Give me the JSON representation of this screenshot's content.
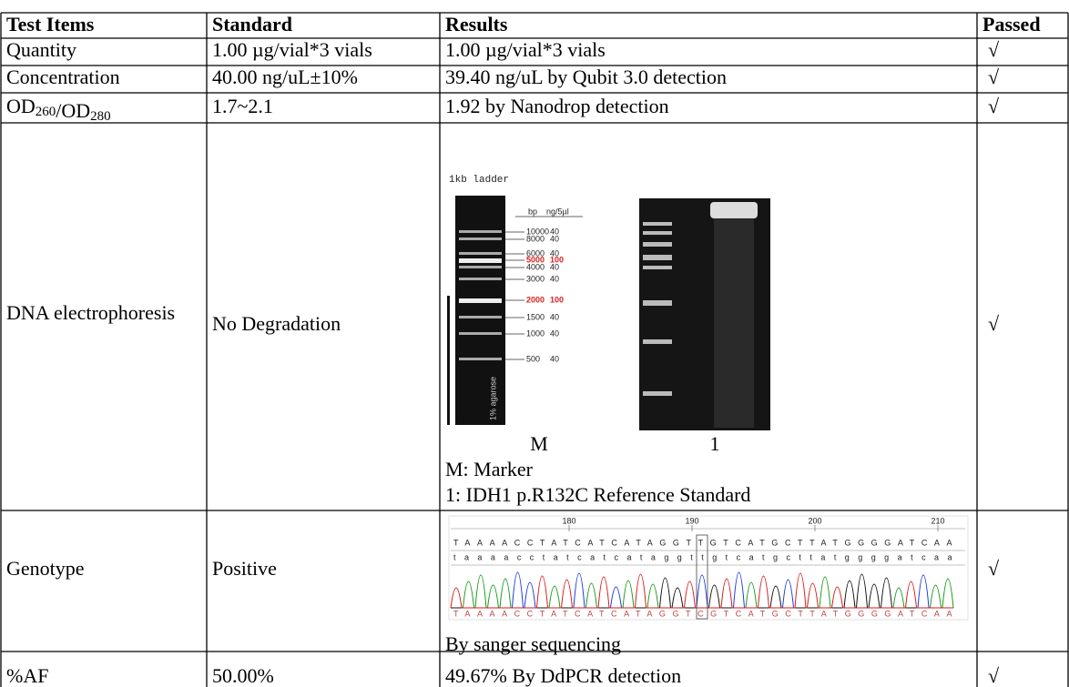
{
  "table": {
    "header": [
      "Test Items",
      "Standard",
      "Results",
      "Passed"
    ],
    "rows": [
      [
        "Quantity",
        "1.00 µg/vial*3 vials",
        "1.00 µg/vial*3 vials",
        "√"
      ],
      [
        "Concentration",
        "40.00 ng/uL±10%",
        "39.40 ng/uL by Qubit 3.0 detection",
        "√"
      ],
      [
        {
          "a": "OD",
          "sub1": "260",
          "b": "/OD",
          "sub2": "280"
        },
        "1.7~2.1",
        "1.92 by Nanodrop detection",
        "√"
      ],
      [
        "DNA electrophoresis",
        "No Degradation",
        {
          "ladder_title": "1kb ladder",
          "ladder_headers": [
            "bp",
            "ng/5µl"
          ],
          "ladder": [
            [
              "10000",
              "40"
            ],
            [
              "8000",
              "40"
            ],
            [
              "6000",
              "40"
            ],
            [
              "5000",
              "100"
            ],
            [
              "4000",
              "40"
            ],
            [
              "3000",
              "40"
            ],
            [
              "2000",
              "100"
            ],
            [
              "1500",
              "40"
            ],
            [
              "1000",
              "40"
            ],
            [
              "500",
              "40"
            ]
          ],
          "agarose": "1% agarose",
          "lane_labels": [
            "M",
            "1"
          ],
          "notes": [
            "M: Marker",
            "1: IDH1 p.R132C Reference Standard"
          ]
        },
        "√"
      ],
      [
        "Genotype",
        "Positive",
        {
          "positions": [
            "180",
            "190",
            "200",
            "210"
          ],
          "seq_upper": "TAAAACCTATCATCATAGGTTGTCATGCTTATGGGGATCAA",
          "seq_lower": "taaaacctatcatcataggttgtcatgcttatggggatcaa",
          "seq_trace": "TAAAACCTATCATCATAGGTCGTCATGCTTATGGGGATCAA",
          "caption": "By sanger sequencing"
        },
        "√"
      ],
      [
        "%AF",
        "50.00%",
        "49.67% By DdPCR detection",
        "√"
      ]
    ]
  }
}
